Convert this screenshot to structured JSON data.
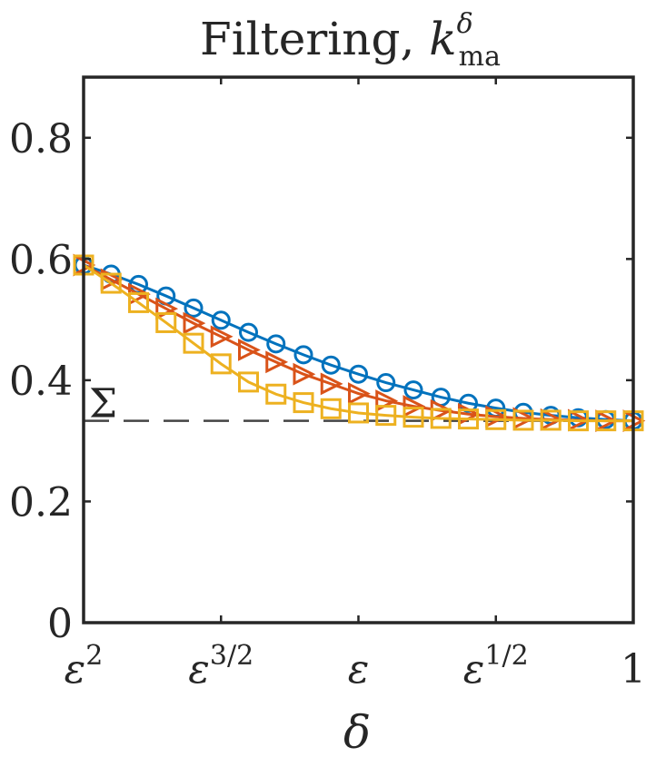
{
  "chart_data": {
    "type": "line",
    "title": {
      "text": "Filtering, ",
      "symbol": "k",
      "superscript": "δ",
      "subscript": "ma"
    },
    "xlabel": "δ",
    "ylabel": "",
    "ylim": [
      0,
      0.9
    ],
    "yticks": [
      "0",
      "0.2",
      "0.4",
      "0.6",
      "0.8"
    ],
    "ytick_values": [
      0,
      0.2,
      0.4,
      0.6,
      0.8
    ],
    "x_scale": "log in ε (ticks at powers of ε)",
    "xticks": [
      {
        "base": "ε",
        "sup": "2"
      },
      {
        "base": "ε",
        "sup": "3/2"
      },
      {
        "base": "ε",
        "sup": ""
      },
      {
        "base": "ε",
        "sup": "1/2"
      },
      {
        "base": "1",
        "sup": ""
      }
    ],
    "xtick_exponents": [
      2,
      1.5,
      1,
      0.5,
      0
    ],
    "reference_line": {
      "label": "Σ",
      "y": 0.333,
      "style": "dashed",
      "color": "#444444"
    },
    "grid": false,
    "series": [
      {
        "color": "#0072BD",
        "marker": "circle",
        "x_exponent": [
          2.0,
          1.9,
          1.8,
          1.7,
          1.6,
          1.5,
          1.4,
          1.3,
          1.2,
          1.1,
          1.0,
          0.9,
          0.8,
          0.7,
          0.6,
          0.5,
          0.4,
          0.3,
          0.2,
          0.1,
          0.0
        ],
        "values": [
          0.59,
          0.575,
          0.558,
          0.539,
          0.519,
          0.499,
          0.479,
          0.46,
          0.442,
          0.425,
          0.41,
          0.396,
          0.384,
          0.372,
          0.362,
          0.354,
          0.347,
          0.342,
          0.338,
          0.335,
          0.333
        ]
      },
      {
        "color": "#D95319",
        "marker": "triangle-right",
        "x_exponent": [
          2.0,
          1.9,
          1.8,
          1.7,
          1.6,
          1.5,
          1.4,
          1.3,
          1.2,
          1.1,
          1.0,
          0.9,
          0.8,
          0.7,
          0.6,
          0.5,
          0.4,
          0.3,
          0.2,
          0.1,
          0.0
        ],
        "values": [
          0.59,
          0.566,
          0.542,
          0.518,
          0.494,
          0.472,
          0.45,
          0.43,
          0.41,
          0.394,
          0.378,
          0.366,
          0.357,
          0.35,
          0.344,
          0.34,
          0.337,
          0.335,
          0.334,
          0.333,
          0.333
        ]
      },
      {
        "color": "#EDB120",
        "marker": "square",
        "x_exponent": [
          2.0,
          1.9,
          1.8,
          1.7,
          1.6,
          1.5,
          1.4,
          1.3,
          1.2,
          1.1,
          1.0,
          0.9,
          0.8,
          0.7,
          0.6,
          0.5,
          0.4,
          0.3,
          0.2,
          0.1,
          0.0
        ],
        "values": [
          0.59,
          0.56,
          0.528,
          0.495,
          0.461,
          0.427,
          0.397,
          0.377,
          0.363,
          0.353,
          0.346,
          0.342,
          0.339,
          0.337,
          0.336,
          0.335,
          0.334,
          0.334,
          0.333,
          0.333,
          0.333
        ]
      }
    ]
  }
}
